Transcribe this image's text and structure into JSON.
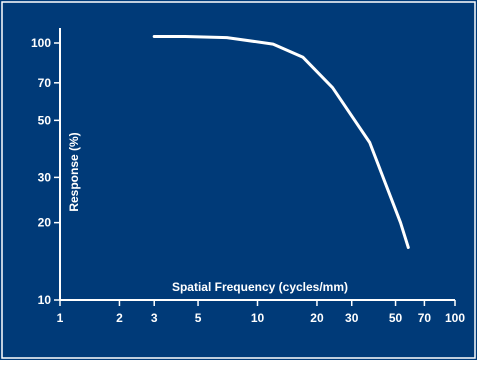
{
  "chart_data": {
    "type": "line",
    "title": "",
    "xlabel": "Spatial Frequency (cycles/mm)",
    "ylabel": "Response (%)",
    "x_scale": "log",
    "y_scale": "log",
    "xlim": [
      1,
      100
    ],
    "ylim": [
      10,
      100
    ],
    "x_ticks": [
      {
        "value": 1,
        "label": "1"
      },
      {
        "value": 2,
        "label": "2"
      },
      {
        "value": 3,
        "label": "3"
      },
      {
        "value": 5,
        "label": "5"
      },
      {
        "value": 10,
        "label": "10"
      },
      {
        "value": 20,
        "label": "20"
      },
      {
        "value": 30,
        "label": "30"
      },
      {
        "value": 50,
        "label": "50"
      },
      {
        "value": 70,
        "label": "70"
      },
      {
        "value": 100,
        "label": "100"
      }
    ],
    "y_ticks": [
      {
        "value": 10,
        "label": "10"
      },
      {
        "value": 20,
        "label": "20"
      },
      {
        "value": 30,
        "label": "30"
      },
      {
        "value": 50,
        "label": "50"
      },
      {
        "value": 70,
        "label": "70"
      },
      {
        "value": 100,
        "label": "100"
      }
    ],
    "grid": false,
    "series": [
      {
        "x": [
          3,
          4.3,
          7,
          12,
          17,
          24,
          37,
          53,
          58
        ],
        "y": [
          106,
          106,
          105,
          99,
          88,
          67,
          41,
          20,
          16
        ]
      }
    ],
    "colors": {
      "background": "#003a78",
      "border": "#ffffff",
      "line": "#ffffff",
      "text": "#ffffff"
    }
  }
}
